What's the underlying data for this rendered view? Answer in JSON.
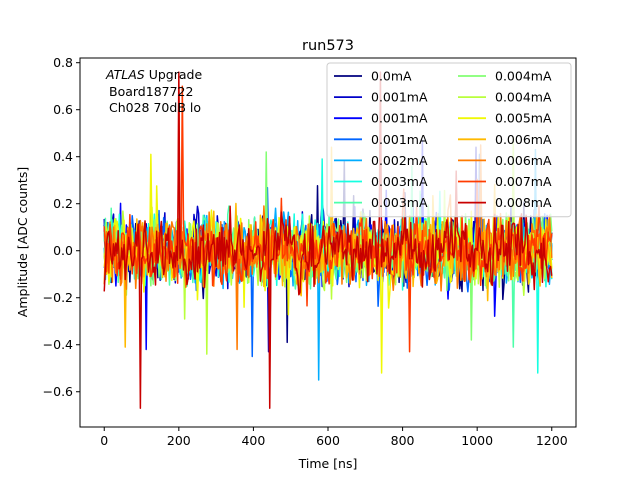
{
  "chart_data": {
    "type": "line",
    "title": "run573",
    "xlabel": "Time [ns]",
    "ylabel": "Amplitude [ADC counts]",
    "xlim": [
      -65,
      1265
    ],
    "ylim": [
      -0.75,
      0.82
    ],
    "x_ticks": [
      0,
      200,
      400,
      600,
      800,
      1000,
      1200
    ],
    "y_ticks": [
      -0.6,
      -0.4,
      -0.2,
      0.0,
      0.2,
      0.4,
      0.6,
      0.8
    ],
    "x_tick_labels": [
      "0",
      "200",
      "400",
      "600",
      "800",
      "1000",
      "1200"
    ],
    "y_tick_labels": [
      "−0.6",
      "−0.4",
      "−0.2",
      "0.0",
      "0.2",
      "0.4",
      "0.6",
      "0.8"
    ],
    "grid": false,
    "legend_position": "top-right",
    "legend_columns": 2,
    "annotation": {
      "atlas": "ATLAS",
      "upgrade": " Upgrade",
      "line2": "Board187722",
      "line3": "Ch028 70dB lo"
    },
    "series": [
      {
        "name": "0.0mA",
        "color": "#00007f",
        "x_range": [
          0,
          1200
        ],
        "step_ns": 3.125,
        "typical_amplitude": 0.15,
        "min": -0.39,
        "max": 0.38
      },
      {
        "name": "0.001mA",
        "color": "#0000c8",
        "x_range": [
          0,
          1200
        ],
        "step_ns": 3.125,
        "typical_amplitude": 0.15,
        "min": -0.43,
        "max": 0.44
      },
      {
        "name": "0.001mA",
        "color": "#0000ff",
        "x_range": [
          0,
          1200
        ],
        "step_ns": 3.125,
        "typical_amplitude": 0.15,
        "min": -0.42,
        "max": 0.47
      },
      {
        "name": "0.001mA",
        "color": "#0064ff",
        "x_range": [
          0,
          1200
        ],
        "step_ns": 3.125,
        "typical_amplitude": 0.15,
        "min": -0.45,
        "max": 0.41
      },
      {
        "name": "0.002mA",
        "color": "#00acff",
        "x_range": [
          0,
          1200
        ],
        "step_ns": 3.125,
        "typical_amplitude": 0.15,
        "min": -0.55,
        "max": 0.43
      },
      {
        "name": "0.003mA",
        "color": "#16ffe1",
        "x_range": [
          0,
          1200
        ],
        "step_ns": 3.125,
        "typical_amplitude": 0.15,
        "min": -0.52,
        "max": 0.39
      },
      {
        "name": "0.003mA",
        "color": "#4dffa9",
        "x_range": [
          0,
          1200
        ],
        "step_ns": 3.125,
        "typical_amplitude": 0.15,
        "min": -0.41,
        "max": 0.36
      },
      {
        "name": "0.004mA",
        "color": "#83ff73",
        "x_range": [
          0,
          1200
        ],
        "step_ns": 3.125,
        "typical_amplitude": 0.15,
        "min": -0.38,
        "max": 0.42
      },
      {
        "name": "0.004mA",
        "color": "#b9ff3c",
        "x_range": [
          0,
          1200
        ],
        "step_ns": 3.125,
        "typical_amplitude": 0.15,
        "min": -0.44,
        "max": 0.48
      },
      {
        "name": "0.005mA",
        "color": "#f0f805",
        "x_range": [
          0,
          1200
        ],
        "step_ns": 3.125,
        "typical_amplitude": 0.15,
        "min": -0.52,
        "max": 0.41
      },
      {
        "name": "0.006mA",
        "color": "#ffb900",
        "x_range": [
          0,
          1200
        ],
        "step_ns": 3.125,
        "typical_amplitude": 0.15,
        "min": -0.41,
        "max": 0.44
      },
      {
        "name": "0.006mA",
        "color": "#ff7a00",
        "x_range": [
          0,
          1200
        ],
        "step_ns": 3.125,
        "typical_amplitude": 0.15,
        "min": -0.42,
        "max": 0.45
      },
      {
        "name": "0.007mA",
        "color": "#ff3b00",
        "x_range": [
          0,
          1200
        ],
        "step_ns": 3.125,
        "typical_amplitude": 0.15,
        "min": -0.43,
        "max": 0.7
      },
      {
        "name": "0.008mA",
        "color": "#c80000",
        "x_range": [
          0,
          1200
        ],
        "step_ns": 3.125,
        "typical_amplitude": 0.15,
        "min": -0.67,
        "max": 0.76
      }
    ],
    "features": [
      {
        "x": 200,
        "y": 0.76,
        "note": "positive spike"
      },
      {
        "x": 443,
        "y": -0.67,
        "note": "negative spike"
      }
    ]
  }
}
